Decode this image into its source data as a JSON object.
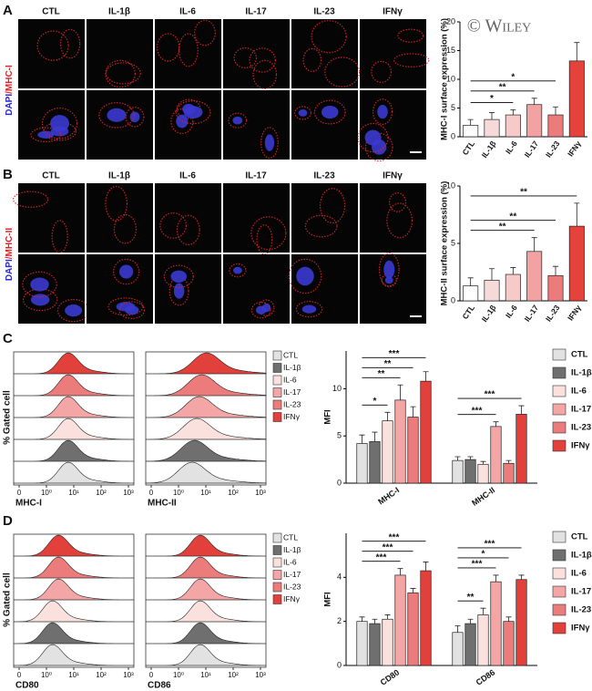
{
  "figure": {
    "watermark": "© Wiley",
    "panel_labels": [
      "A",
      "B",
      "C",
      "D"
    ],
    "conditions": [
      "CTL",
      "IL-1β",
      "IL-6",
      "IL-17",
      "IL-23",
      "IFNγ"
    ],
    "stain_labels": [
      [
        "DAPI",
        "/MHC-I"
      ],
      [
        "DAPI",
        "/MHC-II"
      ]
    ],
    "histogram_ylabel": "% Gated cell",
    "histogram_xlabels": [
      [
        "MHC-I",
        "MHC-II"
      ],
      [
        "CD80",
        "CD86"
      ]
    ],
    "histogram_ticks": [
      "0",
      "10⁰",
      "10¹",
      "10²",
      "10³"
    ]
  },
  "chart_data": [
    {
      "type": "bar",
      "ylabel": "MHC-I surface expression (%)",
      "categories": [
        "CTL",
        "IL-1β",
        "IL-6",
        "IL-17",
        "IL-23",
        "IFNγ"
      ],
      "values": [
        2.0,
        3.0,
        3.8,
        5.6,
        3.8,
        13.2
      ],
      "errors": [
        1.0,
        1.2,
        0.9,
        1.1,
        1.4,
        3.2
      ],
      "colors": [
        "#ffffff",
        "#f6dada",
        "#f7caca",
        "#f3a2a2",
        "#ec7c7c",
        "#e5423c"
      ],
      "ylim": [
        0,
        20
      ],
      "yticks": [
        0,
        5,
        10,
        15,
        20
      ],
      "comparisons": [
        {
          "pair": [
            "CTL",
            "IL-6"
          ],
          "label": "*"
        },
        {
          "pair": [
            "CTL",
            "IL-17"
          ],
          "label": "**"
        },
        {
          "pair": [
            "CTL",
            "IL-23"
          ],
          "label": "*"
        }
      ]
    },
    {
      "type": "bar",
      "ylabel": "MHC-II surface expression (%)",
      "categories": [
        "CTL",
        "IL-1β",
        "IL-6",
        "IL-17",
        "IL-23",
        "IFNγ"
      ],
      "values": [
        1.3,
        1.8,
        2.3,
        4.3,
        2.2,
        6.5
      ],
      "errors": [
        0.7,
        1.0,
        0.6,
        1.2,
        0.8,
        2.0
      ],
      "colors": [
        "#ffffff",
        "#f6dada",
        "#f7caca",
        "#f3a2a2",
        "#ec7c7c",
        "#e5423c"
      ],
      "ylim": [
        0,
        10
      ],
      "yticks": [
        0,
        5,
        10
      ],
      "comparisons": [
        {
          "pair": [
            "CTL",
            "IL-17"
          ],
          "label": "**"
        },
        {
          "pair": [
            "CTL",
            "IL-23"
          ],
          "label": "**"
        },
        {
          "pair": [
            "CTL",
            "IFNγ"
          ],
          "label": "**"
        }
      ]
    },
    {
      "type": "grouped-bar",
      "ylabel": "MFI",
      "categories": [
        "MHC-I",
        "MHC-II"
      ],
      "series": [
        {
          "name": "CTL",
          "color": "#e2e2e2",
          "values": [
            4.2,
            2.4
          ],
          "errors": [
            0.9,
            0.4
          ]
        },
        {
          "name": "IL-1β",
          "color": "#6f6f6f",
          "values": [
            4.4,
            2.5
          ],
          "errors": [
            1.0,
            0.3
          ]
        },
        {
          "name": "IL-6",
          "color": "#fbe1dd",
          "values": [
            6.6,
            2.0
          ],
          "errors": [
            0.9,
            0.3
          ]
        },
        {
          "name": "IL-17",
          "color": "#f4a6a6",
          "values": [
            8.8,
            6.0
          ],
          "errors": [
            1.6,
            0.5
          ]
        },
        {
          "name": "IL-23",
          "color": "#ec7b7b",
          "values": [
            7.0,
            2.1
          ],
          "errors": [
            1.1,
            0.3
          ]
        },
        {
          "name": "IFNγ",
          "color": "#e2413b",
          "values": [
            10.8,
            7.3
          ],
          "errors": [
            1.0,
            0.9
          ]
        }
      ],
      "ylim": [
        0,
        14
      ],
      "yticks": [
        0,
        5,
        10
      ],
      "comparisons": [
        {
          "group": "MHC-I",
          "pair": [
            "CTL",
            "IL-6"
          ],
          "label": "*"
        },
        {
          "group": "MHC-I",
          "pair": [
            "CTL",
            "IL-17"
          ],
          "label": "**"
        },
        {
          "group": "MHC-I",
          "pair": [
            "CTL",
            "IL-23"
          ],
          "label": "**"
        },
        {
          "group": "MHC-I",
          "pair": [
            "CTL",
            "IFNγ"
          ],
          "label": "***"
        },
        {
          "group": "MHC-II",
          "pair": [
            "CTL",
            "IL-17"
          ],
          "label": "***"
        },
        {
          "group": "MHC-II",
          "pair": [
            "CTL",
            "IFNγ"
          ],
          "label": "***"
        }
      ]
    },
    {
      "type": "grouped-bar",
      "ylabel": "MFI",
      "categories": [
        "CD80",
        "CD86"
      ],
      "series": [
        {
          "name": "CTL",
          "color": "#e2e2e2",
          "values": [
            2.0,
            1.5
          ],
          "errors": [
            0.2,
            0.3
          ]
        },
        {
          "name": "IL-1β",
          "color": "#6f6f6f",
          "values": [
            1.9,
            1.9
          ],
          "errors": [
            0.2,
            0.2
          ]
        },
        {
          "name": "IL-6",
          "color": "#fbe1dd",
          "values": [
            2.1,
            2.3
          ],
          "errors": [
            0.2,
            0.3
          ]
        },
        {
          "name": "IL-17",
          "color": "#f4a6a6",
          "values": [
            4.1,
            3.8
          ],
          "errors": [
            0.3,
            0.3
          ]
        },
        {
          "name": "IL-23",
          "color": "#ec7b7b",
          "values": [
            3.3,
            2.0
          ],
          "errors": [
            0.2,
            0.2
          ]
        },
        {
          "name": "IFNγ",
          "color": "#e2413b",
          "values": [
            4.3,
            3.9
          ],
          "errors": [
            0.4,
            0.2
          ]
        }
      ],
      "ylim": [
        0,
        6
      ],
      "yticks": [
        0,
        2,
        4
      ],
      "comparisons": [
        {
          "group": "CD80",
          "pair": [
            "CTL",
            "IL-17"
          ],
          "label": "***"
        },
        {
          "group": "CD80",
          "pair": [
            "CTL",
            "IL-23"
          ],
          "label": "***"
        },
        {
          "group": "CD80",
          "pair": [
            "CTL",
            "IFNγ"
          ],
          "label": "***"
        },
        {
          "group": "CD86",
          "pair": [
            "CTL",
            "IL-6"
          ],
          "label": "**"
        },
        {
          "group": "CD86",
          "pair": [
            "CTL",
            "IL-17"
          ],
          "label": "***"
        },
        {
          "group": "CD86",
          "pair": [
            "CTL",
            "IL-23"
          ],
          "label": "*"
        },
        {
          "group": "CD86",
          "pair": [
            "CTL",
            "IFNγ"
          ],
          "label": "***"
        }
      ]
    }
  ]
}
